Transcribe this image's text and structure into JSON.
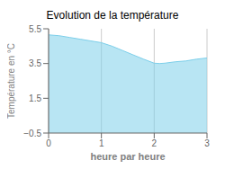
{
  "chart_data": {
    "type": "area",
    "title": "Evolution de la température",
    "xlabel": "heure par heure",
    "ylabel": "Température en °C",
    "x": [
      0.0,
      0.2,
      0.4,
      0.6,
      0.8,
      1.0,
      1.2,
      1.4,
      1.6,
      1.8,
      2.0,
      2.1,
      2.2,
      2.4,
      2.6,
      2.8,
      3.0
    ],
    "values": [
      5.15,
      5.1,
      5.0,
      4.9,
      4.8,
      4.7,
      4.5,
      4.25,
      4.0,
      3.75,
      3.52,
      3.5,
      3.52,
      3.6,
      3.65,
      3.75,
      3.82
    ],
    "color": "#7dcfea",
    "xlim": [
      0,
      3
    ],
    "ylim": [
      -0.5,
      5.5
    ],
    "xticks": [
      0,
      1,
      2,
      3
    ],
    "yticks": [
      {
        "value": -0.5,
        "label": "−0.5"
      },
      1.5,
      3.5,
      5.5
    ],
    "grid": "x"
  }
}
